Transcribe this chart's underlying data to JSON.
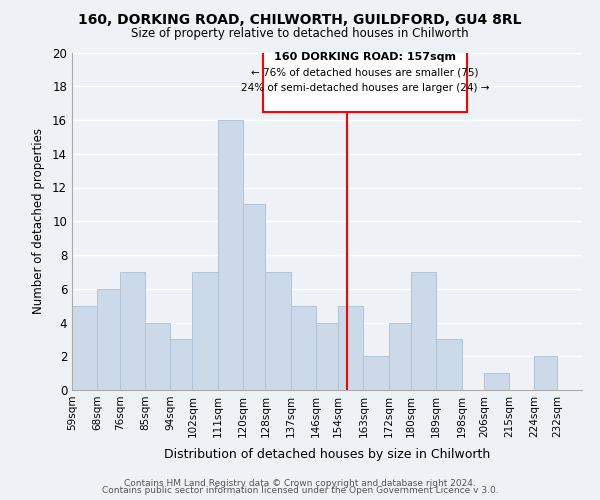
{
  "title1": "160, DORKING ROAD, CHILWORTH, GUILDFORD, GU4 8RL",
  "title2": "Size of property relative to detached houses in Chilworth",
  "xlabel": "Distribution of detached houses by size in Chilworth",
  "ylabel": "Number of detached properties",
  "bin_labels": [
    "59sqm",
    "68sqm",
    "76sqm",
    "85sqm",
    "94sqm",
    "102sqm",
    "111sqm",
    "120sqm",
    "128sqm",
    "137sqm",
    "146sqm",
    "154sqm",
    "163sqm",
    "172sqm",
    "180sqm",
    "189sqm",
    "198sqm",
    "206sqm",
    "215sqm",
    "224sqm",
    "232sqm"
  ],
  "bar_heights": [
    5,
    6,
    7,
    4,
    3,
    7,
    16,
    11,
    7,
    5,
    4,
    5,
    2,
    4,
    7,
    3,
    0,
    1,
    0,
    2,
    0
  ],
  "bar_color": "#ccd9e8",
  "bar_edge_color": "#b0c4d8",
  "annotation_line_color": "red",
  "annotation_box_text_line1": "160 DORKING ROAD: 157sqm",
  "annotation_box_text_line2": "← 76% of detached houses are smaller (75)",
  "annotation_box_text_line3": "24% of semi-detached houses are larger (24) →",
  "ylim": [
    0,
    20
  ],
  "yticks": [
    0,
    2,
    4,
    6,
    8,
    10,
    12,
    14,
    16,
    18,
    20
  ],
  "footer1": "Contains HM Land Registry data © Crown copyright and database right 2024.",
  "footer2": "Contains public sector information licensed under the Open Government Licence v 3.0.",
  "background_color": "#eef2f7",
  "grid_color": "#ffffff",
  "bin_edges": [
    59,
    68,
    76,
    85,
    94,
    102,
    111,
    120,
    128,
    137,
    146,
    154,
    163,
    172,
    180,
    189,
    198,
    206,
    215,
    224,
    232,
    241
  ]
}
